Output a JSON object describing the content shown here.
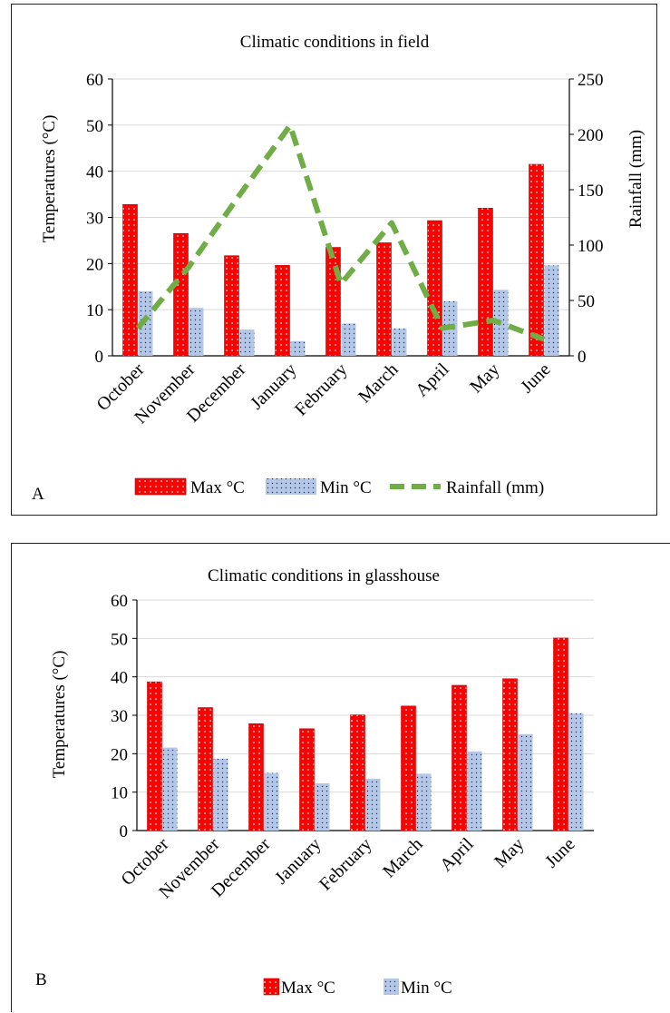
{
  "chart_data": [
    {
      "type": "bar",
      "panel_label": "A",
      "title": "Climatic conditions in field",
      "categories": [
        "October",
        "November",
        "December",
        "January",
        "February",
        "March",
        "April",
        "May",
        "June"
      ],
      "ylabel": "Temperatures (°C)",
      "ylim": [
        0,
        60
      ],
      "yticks": [
        0,
        10,
        20,
        30,
        40,
        50,
        60
      ],
      "y2label": "Rainfall (mm)",
      "y2lim": [
        0,
        250
      ],
      "y2ticks": [
        0,
        50,
        100,
        150,
        200,
        250
      ],
      "grid": true,
      "legend_position": "bottom",
      "series": [
        {
          "name": "Max °C",
          "type": "bar",
          "color": "#ff0000",
          "values": [
            32.8,
            26.5,
            21.7,
            19.6,
            23.5,
            24.5,
            29.3,
            32.0,
            41.5
          ]
        },
        {
          "name": "Min °C",
          "type": "bar",
          "color": "#b4c7e7",
          "values": [
            14.0,
            10.4,
            5.7,
            3.2,
            7.0,
            5.9,
            11.8,
            14.3,
            19.6
          ]
        },
        {
          "name": "Rainfall (mm)",
          "type": "line",
          "axis": "right",
          "style": "dashed",
          "color": "#70ad47",
          "values": [
            25,
            80,
            145,
            208,
            65,
            120,
            25,
            32,
            15
          ]
        }
      ]
    },
    {
      "type": "bar",
      "panel_label": "B",
      "title": "Climatic conditions in glasshouse",
      "categories": [
        "October",
        "November",
        "December",
        "January",
        "February",
        "March",
        "April",
        "May",
        "June"
      ],
      "ylabel": "Temperatures (°C)",
      "ylim": [
        0,
        60
      ],
      "yticks": [
        0,
        10,
        20,
        30,
        40,
        50,
        60
      ],
      "grid": true,
      "legend_position": "bottom",
      "series": [
        {
          "name": "Max °C",
          "type": "bar",
          "color": "#ff0000",
          "values": [
            38.7,
            32.0,
            27.8,
            26.5,
            30.1,
            32.4,
            37.8,
            39.5,
            50.1
          ]
        },
        {
          "name": "Min °C",
          "type": "bar",
          "color": "#b4c7e7",
          "values": [
            21.6,
            18.7,
            15.0,
            12.3,
            13.5,
            14.8,
            20.6,
            25.1,
            30.5
          ]
        }
      ]
    }
  ]
}
